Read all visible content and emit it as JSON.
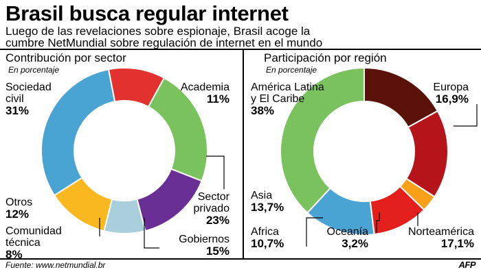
{
  "header": {
    "title": "Brasil busca regular internet",
    "subtitle_line1": "Luego de las revelaciones sobre espionaje, Brasil acoge la",
    "subtitle_line2": "cumbre NetMundial sobre regulación de internet en el mundo"
  },
  "footer": {
    "source": "Fuente: www.netmundial.br",
    "agency": "AFP"
  },
  "chart_data": [
    {
      "type": "pie",
      "title": "Contribución por sector",
      "unit": "En porcentaje",
      "slices": [
        {
          "label_lines": [
            "Academia"
          ],
          "value": 11,
          "value_text": "11%",
          "color": "#e3312d"
        },
        {
          "label_lines": [
            "Sector",
            "privado"
          ],
          "value": 23,
          "value_text": "23%",
          "color": "#79c25e"
        },
        {
          "label_lines": [
            "Gobiernos"
          ],
          "value": 15,
          "value_text": "15%",
          "color": "#6a2f95"
        },
        {
          "label_lines": [
            "Comunidad",
            "técnica"
          ],
          "value": 8,
          "value_text": "8%",
          "color": "#a9cfdc"
        },
        {
          "label_lines": [
            "Otros"
          ],
          "value": 12,
          "value_text": "12%",
          "color": "#f9b81f"
        },
        {
          "label_lines": [
            "Sociedad",
            "civil"
          ],
          "value": 31,
          "value_text": "31%",
          "color": "#4aa4d3"
        }
      ]
    },
    {
      "type": "pie",
      "title": "Participación por región",
      "unit": "En porcentaje",
      "slices": [
        {
          "label_lines": [
            "Europa"
          ],
          "value": 16.9,
          "value_text": "16,9%",
          "color": "#5a1208"
        },
        {
          "label_lines": [
            "Norteamérica"
          ],
          "value": 17.1,
          "value_text": "17,1%",
          "color": "#b5141a"
        },
        {
          "label_lines": [
            "Oceanía"
          ],
          "value": 3.2,
          "value_text": "3,2%",
          "color": "#f9a01b"
        },
        {
          "label_lines": [
            "Africa"
          ],
          "value": 10.7,
          "value_text": "10,7%",
          "color": "#e3201b"
        },
        {
          "label_lines": [
            "Asia"
          ],
          "value": 13.7,
          "value_text": "13,7%",
          "color": "#4aa4d3"
        },
        {
          "label_lines": [
            "América Latina",
            "y El Caribe"
          ],
          "value": 38,
          "value_text": "38%",
          "color": "#79c25e"
        }
      ]
    }
  ]
}
